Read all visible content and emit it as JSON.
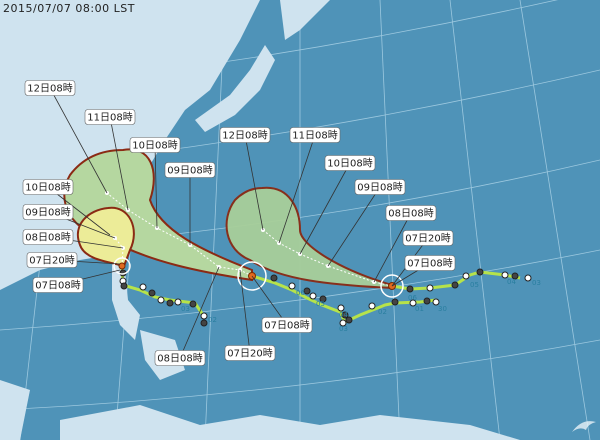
{
  "timestamp": "2015/07/07 08:00 LST",
  "colors": {
    "ocean": "#4f93b8",
    "land": "#cfe3ef",
    "cone_outer": "#a8cf9a",
    "cone_inner": "#f0f0a0",
    "cone_border": "#8b2a14",
    "track_past": "#b6e34a",
    "center": "#e06a20"
  },
  "storms": [
    {
      "id": "west",
      "labels": [
        "10日08時",
        "09日08時",
        "08日08時",
        "07日20時",
        "07日08時"
      ]
    },
    {
      "id": "middle",
      "labels": [
        "12日08時",
        "11日08時",
        "10日08時",
        "09日08時",
        "08日08時",
        "07日20時",
        "07日08時"
      ]
    },
    {
      "id": "east",
      "labels": [
        "12日08時",
        "11日08時",
        "10日08時",
        "09日08時",
        "08日08時",
        "07日20時",
        "07日08時"
      ]
    }
  ],
  "past_track_day_marks": [
    "06",
    "05",
    "04",
    "03",
    "02",
    "01",
    "30",
    "06",
    "05",
    "04",
    "03",
    "03",
    "02"
  ]
}
